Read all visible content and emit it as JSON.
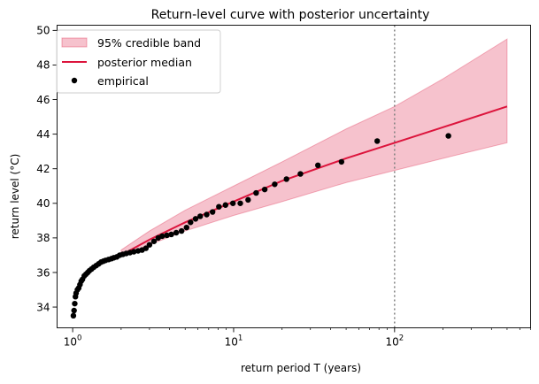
{
  "chart_data": {
    "type": "line",
    "title": "Return-level curve with posterior uncertainty",
    "xlabel": "return period T (years)",
    "ylabel": "return level (°C)",
    "xscale": "log",
    "xlim": [
      0.8,
      700
    ],
    "ylim": [
      32.8,
      50.3
    ],
    "x_ticks": [
      {
        "value": 1,
        "base": "10",
        "exp": "0"
      },
      {
        "value": 10,
        "base": "10",
        "exp": "1"
      },
      {
        "value": 100,
        "base": "10",
        "exp": "2"
      }
    ],
    "y_ticks": [
      34,
      36,
      38,
      40,
      42,
      44,
      46,
      48,
      50
    ],
    "grid": false,
    "legend_position": "upper-left",
    "legend": [
      "95% credible band",
      "posterior median",
      "empirical"
    ],
    "reference_line": {
      "x": 100,
      "style": "dotted",
      "color": "#7f7f7f"
    },
    "band": {
      "name": "95% credible band",
      "color": "#dc143c",
      "x": [
        2,
        3,
        5,
        10,
        20,
        50,
        100,
        200,
        500
      ],
      "lower": [
        36.9,
        37.6,
        38.4,
        39.3,
        40.1,
        41.2,
        41.9,
        42.6,
        43.5
      ],
      "upper": [
        37.3,
        38.4,
        39.6,
        41.0,
        42.4,
        44.3,
        45.6,
        47.2,
        49.5
      ]
    },
    "series": [
      {
        "name": "posterior median",
        "color": "#dc143c",
        "x": [
          2,
          3,
          5,
          10,
          20,
          50,
          100,
          200,
          500
        ],
        "y": [
          37.0,
          37.9,
          38.9,
          40.1,
          41.3,
          42.6,
          43.5,
          44.4,
          45.6
        ]
      },
      {
        "name": "empirical",
        "color": "#000000",
        "x": [
          1.01,
          1.02,
          1.03,
          1.04,
          1.05,
          1.07,
          1.09,
          1.11,
          1.13,
          1.15,
          1.18,
          1.21,
          1.24,
          1.27,
          1.31,
          1.35,
          1.4,
          1.45,
          1.5,
          1.55,
          1.6,
          1.67,
          1.74,
          1.8,
          1.88,
          1.96,
          2.05,
          2.15,
          2.27,
          2.4,
          2.55,
          2.7,
          2.85,
          3.0,
          3.2,
          3.4,
          3.6,
          3.85,
          4.1,
          4.4,
          4.75,
          5.1,
          5.4,
          5.8,
          6.2,
          6.8,
          7.4,
          8.1,
          8.9,
          9.9,
          11.0,
          12.3,
          13.8,
          15.6,
          18.0,
          21.3,
          26.0,
          33.4,
          46.8,
          78.0,
          216.0
        ],
        "y": [
          33.5,
          33.8,
          34.2,
          34.6,
          34.8,
          35.0,
          35.1,
          35.3,
          35.5,
          35.6,
          35.8,
          35.9,
          36.0,
          36.1,
          36.2,
          36.3,
          36.4,
          36.5,
          36.6,
          36.65,
          36.7,
          36.75,
          36.8,
          36.85,
          36.9,
          37.0,
          37.05,
          37.1,
          37.15,
          37.2,
          37.25,
          37.3,
          37.4,
          37.6,
          37.8,
          38.0,
          38.1,
          38.15,
          38.2,
          38.3,
          38.4,
          38.6,
          38.9,
          39.1,
          39.25,
          39.35,
          39.5,
          39.8,
          39.9,
          40.0,
          40.0,
          40.2,
          40.6,
          40.8,
          41.1,
          41.4,
          41.7,
          42.2,
          42.4,
          43.6,
          43.9
        ]
      }
    ]
  }
}
